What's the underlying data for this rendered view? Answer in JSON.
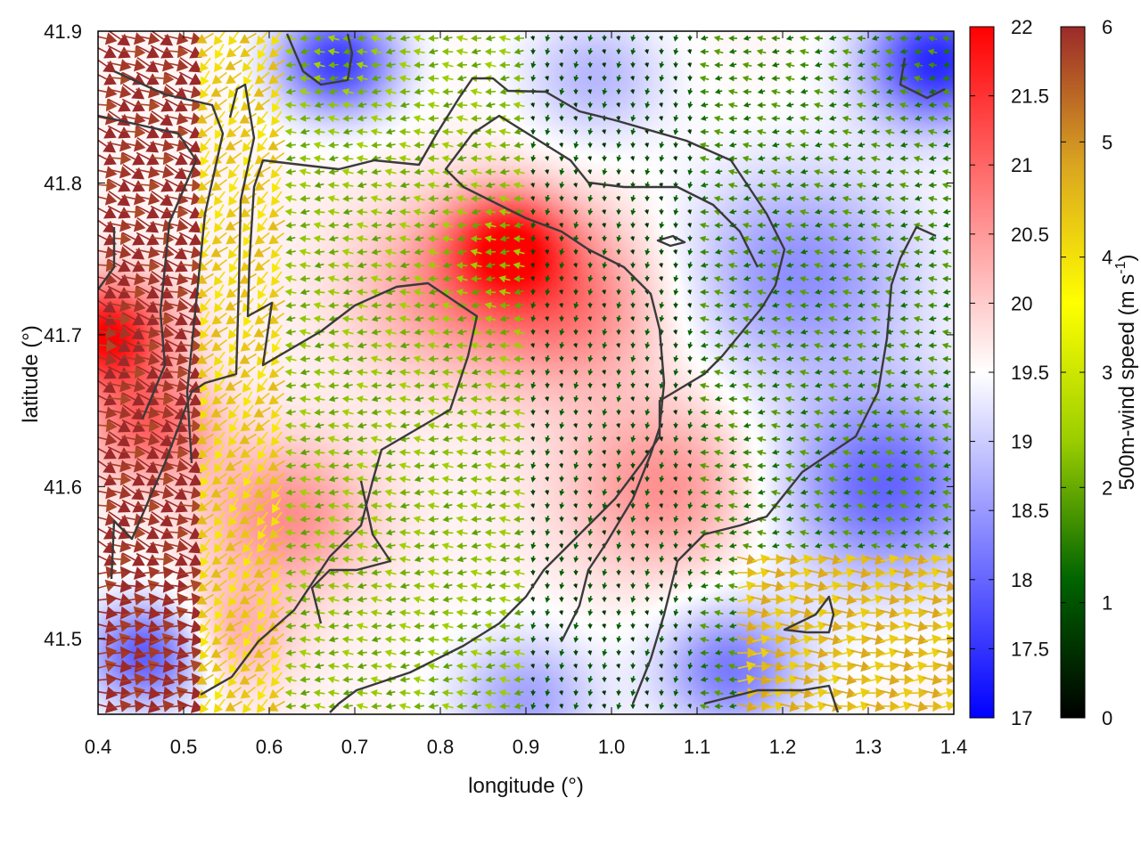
{
  "chart_data": {
    "type": "heatmap",
    "title": "",
    "xlabel": "longitude (°)",
    "ylabel": "latitude (°)",
    "xlim": [
      0.4,
      1.4
    ],
    "ylim": [
      41.45,
      41.9
    ],
    "x_ticks": [
      {
        "value": 0.4,
        "label": "0.4"
      },
      {
        "value": 0.5,
        "label": "0.5"
      },
      {
        "value": 0.6,
        "label": "0.6"
      },
      {
        "value": 0.7,
        "label": "0.7"
      },
      {
        "value": 0.8,
        "label": "0.8"
      },
      {
        "value": 0.9,
        "label": "0.9"
      },
      {
        "value": 1.0,
        "label": "1.0"
      },
      {
        "value": 1.1,
        "label": "1.1"
      },
      {
        "value": 1.2,
        "label": "1.2"
      },
      {
        "value": 1.3,
        "label": "1.3"
      },
      {
        "value": 1.4,
        "label": "1.4"
      }
    ],
    "y_ticks": [
      {
        "value": 41.5,
        "label": "41.5"
      },
      {
        "value": 41.6,
        "label": "41.6"
      },
      {
        "value": 41.7,
        "label": "41.7"
      },
      {
        "value": 41.8,
        "label": "41.8"
      },
      {
        "value": 41.9,
        "label": "41.9"
      }
    ],
    "temperature_colorbar": {
      "range": [
        17,
        22
      ],
      "colors": [
        "#0000ff",
        "#ffffff",
        "#ff0000"
      ],
      "ticks": [
        {
          "value": 17,
          "label": "17"
        },
        {
          "value": 17.5,
          "label": "17.5"
        },
        {
          "value": 18,
          "label": "18"
        },
        {
          "value": 18.5,
          "label": "18.5"
        },
        {
          "value": 19,
          "label": "19"
        },
        {
          "value": 19.5,
          "label": "19.5"
        },
        {
          "value": 20,
          "label": "20"
        },
        {
          "value": 20.5,
          "label": "20.5"
        },
        {
          "value": 21,
          "label": "21"
        },
        {
          "value": 21.5,
          "label": "21.5"
        },
        {
          "value": 22,
          "label": "22"
        }
      ]
    },
    "wind_colorbar": {
      "range": [
        0,
        6
      ],
      "label": "500m-wind speed (m s",
      "label_superscript": "-1",
      "label_close": ")",
      "colors": [
        "#000000",
        "#006400",
        "#9acd00",
        "#ffff00",
        "#daa520",
        "#9b2a2a"
      ],
      "ticks": [
        {
          "value": 0,
          "label": "0"
        },
        {
          "value": 1,
          "label": "1"
        },
        {
          "value": 2,
          "label": "2"
        },
        {
          "value": 3,
          "label": "3"
        },
        {
          "value": 4,
          "label": "4"
        },
        {
          "value": 5,
          "label": "5"
        },
        {
          "value": 6,
          "label": "6"
        }
      ]
    },
    "temperature_hotspots": [
      {
        "lon": 0.41,
        "lat": 41.7,
        "value": 22.0,
        "spread": 0.05
      },
      {
        "lon": 0.46,
        "lat": 41.64,
        "value": 21.0,
        "spread": 0.05
      },
      {
        "lon": 0.88,
        "lat": 41.76,
        "value": 21.4,
        "spread": 0.05
      },
      {
        "lon": 0.95,
        "lat": 41.72,
        "value": 20.8,
        "spread": 0.08
      },
      {
        "lon": 0.8,
        "lat": 41.73,
        "value": 20.4,
        "spread": 0.08
      },
      {
        "lon": 1.06,
        "lat": 41.6,
        "value": 20.6,
        "spread": 0.08
      },
      {
        "lon": 0.62,
        "lat": 41.58,
        "value": 20.6,
        "spread": 0.07
      },
      {
        "lon": 0.55,
        "lat": 41.5,
        "value": 20.4,
        "spread": 0.05
      },
      {
        "lon": 0.68,
        "lat": 41.88,
        "value": 17.6,
        "spread": 0.05
      },
      {
        "lon": 0.46,
        "lat": 41.49,
        "value": 17.8,
        "spread": 0.05
      },
      {
        "lon": 1.38,
        "lat": 41.88,
        "value": 17.4,
        "spread": 0.06
      },
      {
        "lon": 1.22,
        "lat": 41.74,
        "value": 18.4,
        "spread": 0.1
      },
      {
        "lon": 1.32,
        "lat": 41.6,
        "value": 18.0,
        "spread": 0.09
      },
      {
        "lon": 1.14,
        "lat": 41.48,
        "value": 18.2,
        "spread": 0.06
      },
      {
        "lon": 0.9,
        "lat": 41.46,
        "value": 18.6,
        "spread": 0.06
      },
      {
        "lon": 0.98,
        "lat": 41.87,
        "value": 18.8,
        "spread": 0.06
      }
    ],
    "wind_regions": [
      {
        "region": "west",
        "lon_range": [
          0.4,
          0.52
        ],
        "speed": 6.0,
        "direction": "east-southeast"
      },
      {
        "region": "southwest",
        "lon_range": [
          0.4,
          0.65
        ],
        "lat_range": [
          41.45,
          41.55
        ],
        "speed": 6.0,
        "direction": "east"
      },
      {
        "region": "west-central",
        "lon_range": [
          0.52,
          0.62
        ],
        "speed": 4.2,
        "direction": "southwest"
      },
      {
        "region": "central",
        "lon_range": [
          0.62,
          0.9
        ],
        "speed": 2.2,
        "direction": "west"
      },
      {
        "region": "basin",
        "lon_range": [
          0.9,
          1.1
        ],
        "speed": 0.9,
        "direction": "south"
      },
      {
        "region": "southeast",
        "lon_range": [
          1.15,
          1.4
        ],
        "lat_range": [
          41.45,
          41.56
        ],
        "speed": 4.5,
        "direction": "east"
      }
    ],
    "contours": "terrain elevation lines (dark grey)"
  }
}
